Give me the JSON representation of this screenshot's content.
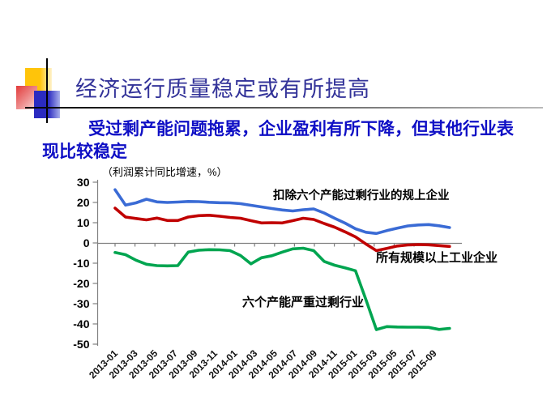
{
  "slide": {
    "title": "经济运行质量稳定或有所提高",
    "subtitle": "受过剩产能问题拖累，企业盈利有所下降，但其他行业表现比较稳定"
  },
  "colors": {
    "title_text": "#333399",
    "subtitle_text": "#0F0FC5",
    "axis": "#808080",
    "tick_label": "#111111",
    "blue_series": "#3A6BD5",
    "red_series": "#C00000",
    "green_series": "#00A550"
  },
  "chart_data": {
    "type": "line",
    "unit_note": "（利润累计同比增速，%）",
    "ylim": [
      -50,
      30
    ],
    "grid": "off",
    "y_ticks": [
      30,
      20,
      10,
      0,
      -10,
      -20,
      -30,
      -40,
      -50
    ],
    "x_tick_labels": [
      "2013-01",
      "2013-03",
      "2013-05",
      "2013-07",
      "2013-09",
      "2013-11",
      "2014-01",
      "2014-03",
      "2014-05",
      "2014-07",
      "2014-09",
      "2014-11",
      "2015-01",
      "2015-03",
      "2015-05",
      "2015-07",
      "2015-09"
    ],
    "x_months": [
      "2013-01",
      "2013-02",
      "2013-03",
      "2013-04",
      "2013-05",
      "2013-06",
      "2013-07",
      "2013-08",
      "2013-09",
      "2013-10",
      "2013-11",
      "2013-12",
      "2014-01",
      "2014-02",
      "2014-03",
      "2014-04",
      "2014-05",
      "2014-06",
      "2014-07",
      "2014-08",
      "2014-09",
      "2014-10",
      "2014-11",
      "2014-12",
      "2015-01",
      "2015-02",
      "2015-03",
      "2015-04",
      "2015-05",
      "2015-06",
      "2015-07",
      "2015-08",
      "2015-09"
    ],
    "series": [
      {
        "name": "扣除六个产能过剩行业的规上企业",
        "color": "#3A6BD5",
        "values": [
          26.3,
          18.7,
          19.8,
          21.6,
          20.3,
          20.0,
          20.2,
          20.5,
          20.4,
          20.1,
          19.9,
          19.8,
          19.4,
          18.6,
          17.8,
          17.0,
          16.3,
          15.8,
          16.4,
          16.8,
          14.8,
          12.2,
          9.8,
          7.0,
          5.3,
          4.7,
          6.1,
          7.3,
          8.4,
          8.9,
          9.1,
          8.5,
          7.6
        ]
      },
      {
        "name": "所有规模以上工业企业",
        "color": "#C00000",
        "values": [
          17.2,
          12.8,
          12.1,
          11.4,
          12.3,
          11.1,
          11.1,
          12.8,
          13.5,
          13.7,
          13.2,
          12.6,
          12.2,
          11.0,
          9.9,
          10.0,
          9.9,
          11.0,
          12.2,
          11.6,
          9.6,
          7.8,
          5.5,
          3.0,
          -0.5,
          -3.8,
          -2.7,
          -1.5,
          -1.0,
          -0.8,
          -0.9,
          -1.3,
          -1.7
        ]
      },
      {
        "name": "六个产能严重过剩行业",
        "color": "#00A550",
        "values": [
          -4.7,
          -5.8,
          -8.5,
          -10.5,
          -11.2,
          -11.3,
          -11.2,
          -4.5,
          -3.6,
          -3.3,
          -3.4,
          -3.8,
          -6.2,
          -10.3,
          -7.3,
          -6.3,
          -4.5,
          -2.9,
          -2.6,
          -3.8,
          -9.1,
          -11.0,
          -12.3,
          -13.7,
          -28.0,
          -42.8,
          -41.3,
          -41.5,
          -41.6,
          -41.6,
          -41.7,
          -42.7,
          -42.2
        ]
      }
    ]
  }
}
